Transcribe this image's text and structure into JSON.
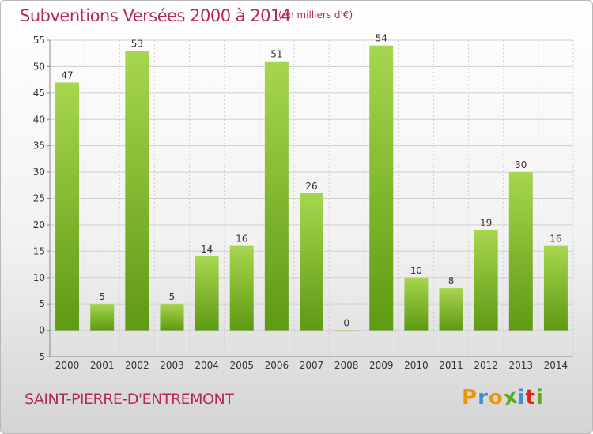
{
  "title": "Subventions Versées 2000 à 2014",
  "unit_label": "(en milliers d'€)",
  "commune": "SAINT-PIERRE-D'ENTREMONT",
  "logo": {
    "text": "Proxiti",
    "letters": [
      {
        "ch": "P",
        "color": "#f29400"
      },
      {
        "ch": "r",
        "color": "#3d8fd1"
      },
      {
        "ch": "o",
        "color": "#f29400"
      },
      {
        "ch": "x",
        "color": "#5aaa1e"
      },
      {
        "ch": "i",
        "color": "#3d8fd1"
      },
      {
        "ch": "t",
        "color": "#e2231a"
      },
      {
        "ch": "i",
        "color": "#5aaa1e"
      }
    ]
  },
  "colors": {
    "bar_light": "#a7d64f",
    "bar_dark": "#5e9a12",
    "title": "#b5285a",
    "grid": "#cfcfcf"
  },
  "chart_data": {
    "type": "bar",
    "categories": [
      "2000",
      "2001",
      "2002",
      "2003",
      "2004",
      "2005",
      "2006",
      "2007",
      "2008",
      "2009",
      "2010",
      "2011",
      "2012",
      "2013",
      "2014"
    ],
    "values": [
      47,
      5,
      53,
      5,
      14,
      16,
      51,
      26,
      0,
      54,
      10,
      8,
      19,
      30,
      16
    ],
    "ylim": [
      -5,
      55
    ],
    "yticks": [
      -5,
      0,
      5,
      10,
      15,
      20,
      25,
      30,
      35,
      40,
      45,
      50,
      55
    ],
    "grid": true
  }
}
